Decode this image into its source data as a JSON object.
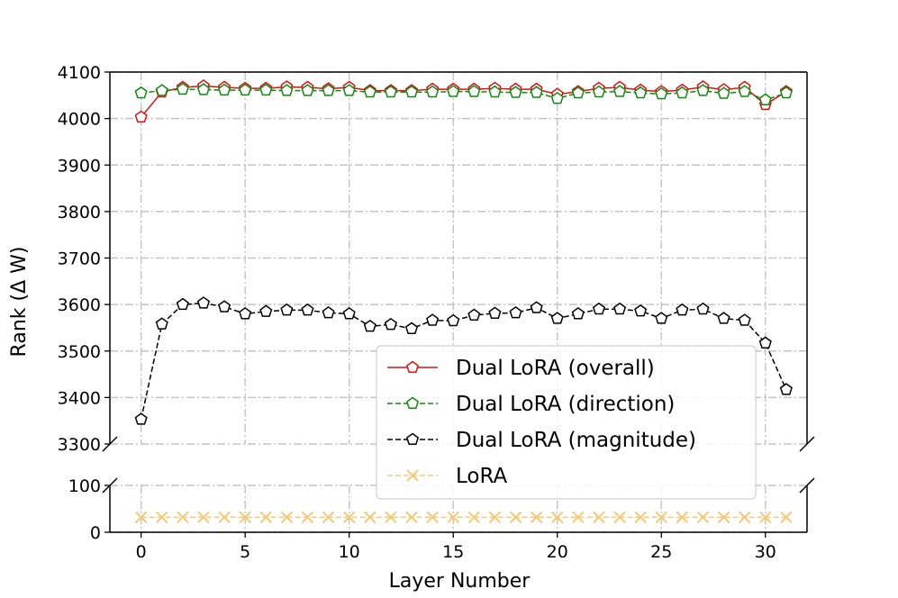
{
  "chart_data": {
    "type": "line",
    "title": "",
    "xlabel": "Layer Number",
    "ylabel": "Rank (Δ W)",
    "broken_axis": true,
    "upper_panel": {
      "ylim": [
        3300,
        4100
      ],
      "yticks": [
        3300,
        3400,
        3500,
        3600,
        3700,
        3800,
        3900,
        4000,
        4100
      ]
    },
    "lower_panel": {
      "ylim": [
        0,
        100
      ],
      "yticks": [
        0,
        100
      ]
    },
    "xlim": [
      -1.5,
      32.0
    ],
    "xticks": [
      0,
      5,
      10,
      15,
      20,
      25,
      30
    ],
    "grid": true,
    "legend_position": "lower-right",
    "x": [
      0,
      1,
      2,
      3,
      4,
      5,
      6,
      7,
      8,
      9,
      10,
      11,
      12,
      13,
      14,
      15,
      16,
      17,
      18,
      19,
      20,
      21,
      22,
      23,
      24,
      25,
      26,
      27,
      28,
      29,
      30,
      31
    ],
    "series": [
      {
        "name": "Dual LoRA (overall)",
        "color": "#dd1111",
        "marker": "pentagon",
        "linestyle": "solid",
        "panel": "upper",
        "values": [
          4003,
          4057,
          4067,
          4070,
          4067,
          4065,
          4065,
          4068,
          4067,
          4064,
          4067,
          4060,
          4060,
          4060,
          4063,
          4063,
          4063,
          4065,
          4063,
          4063,
          4052,
          4058,
          4065,
          4067,
          4061,
          4058,
          4061,
          4068,
          4062,
          4067,
          4030,
          4058
        ]
      },
      {
        "name": "Dual LoRA (direction)",
        "color": "#118811",
        "marker": "pentagon",
        "linestyle": "dashed",
        "panel": "upper",
        "values": [
          4055,
          4060,
          4063,
          4062,
          4061,
          4061,
          4061,
          4060,
          4060,
          4060,
          4060,
          4057,
          4057,
          4057,
          4057,
          4058,
          4058,
          4057,
          4056,
          4056,
          4043,
          4055,
          4057,
          4058,
          4055,
          4053,
          4055,
          4060,
          4054,
          4058,
          4040,
          4055
        ]
      },
      {
        "name": "Dual LoRA (magnitude)",
        "color": "#000000",
        "marker": "pentagon",
        "linestyle": "dashed",
        "panel": "upper",
        "values": [
          3353,
          3558,
          3600,
          3603,
          3595,
          3580,
          3585,
          3588,
          3588,
          3582,
          3580,
          3553,
          3557,
          3548,
          3566,
          3565,
          3577,
          3581,
          3582,
          3593,
          3570,
          3580,
          3590,
          3590,
          3586,
          3570,
          3588,
          3590,
          3570,
          3566,
          3517,
          3417
        ]
      },
      {
        "name": "LoRA",
        "color": "#f5c97a",
        "marker": "x",
        "linestyle": "dashed",
        "panel": "lower",
        "values": [
          32,
          32,
          32,
          32,
          32,
          32,
          32,
          32,
          32,
          32,
          32,
          32,
          32,
          32,
          32,
          32,
          32,
          32,
          32,
          32,
          32,
          32,
          32,
          32,
          32,
          32,
          32,
          32,
          32,
          32,
          32,
          32
        ]
      }
    ]
  }
}
